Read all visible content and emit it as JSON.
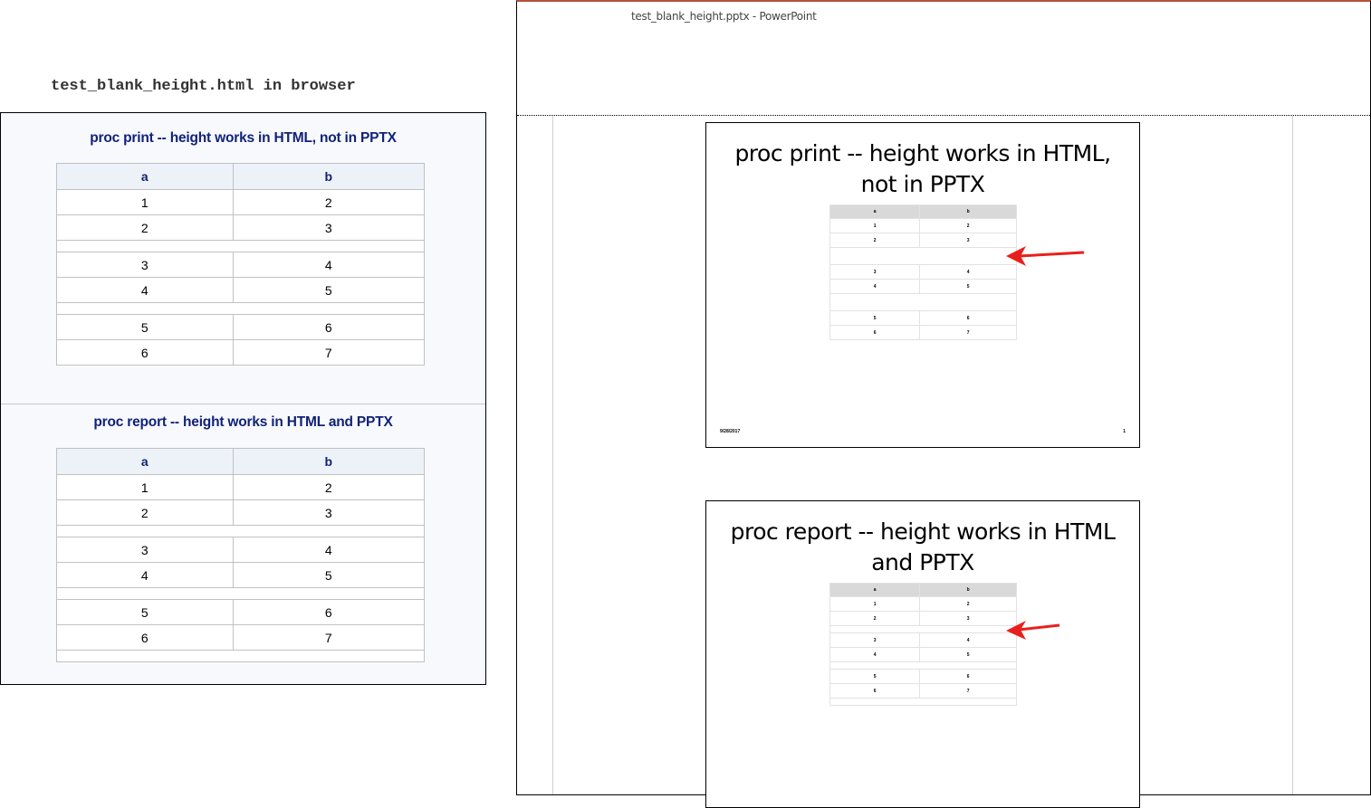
{
  "caption": "test_blank_height.html in browser",
  "browser": {
    "sections": [
      {
        "title": "proc print -- height works in HTML, not in PPTX",
        "headers": [
          "a",
          "b"
        ],
        "rows": [
          [
            "1",
            "2"
          ],
          [
            "2",
            "3"
          ],
          [],
          [
            "3",
            "4"
          ],
          [
            "4",
            "5"
          ],
          [],
          [
            "5",
            "6"
          ],
          [
            "6",
            "7"
          ]
        ]
      },
      {
        "title": "proc report -- height works in HTML and PPTX",
        "headers": [
          "a",
          "b"
        ],
        "rows": [
          [
            "1",
            "2"
          ],
          [
            "2",
            "3"
          ],
          [],
          [
            "3",
            "4"
          ],
          [
            "4",
            "5"
          ],
          [],
          [
            "5",
            "6"
          ],
          [
            "6",
            "7"
          ],
          []
        ]
      }
    ]
  },
  "powerpoint": {
    "window_title": "test_blank_height.pptx - PowerPoint",
    "slides": [
      {
        "title": "proc print -- height works in HTML, not in PPTX",
        "date": "9/28/2017",
        "page": "1",
        "arrow_color": "#e8201c"
      },
      {
        "title": "proc report -- height works in HTML and PPTX",
        "arrow_color": "#e8201c"
      }
    ]
  },
  "colors": {
    "html_title": "#112277",
    "html_header_bg": "#edf2f9",
    "ppt_header_bg": "#d9d9d9",
    "arrow": "#e8201c"
  }
}
